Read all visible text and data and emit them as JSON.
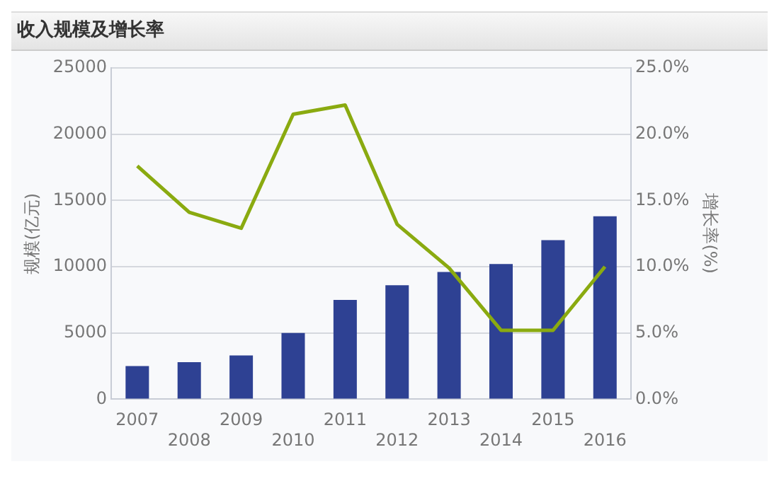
{
  "chart_data": {
    "type": "bar",
    "title": "收入规模及增长率",
    "ylabel": "规模(亿元)",
    "y2label": "增长率(%)",
    "categories": [
      "2007",
      "2008",
      "2009",
      "2010",
      "2011",
      "2012",
      "2013",
      "2014",
      "2015",
      "2016"
    ],
    "series": [
      {
        "color": "#2e4193",
        "values": [
          2500,
          2800,
          3300,
          5000,
          7500,
          8600,
          9600,
          10200,
          12000,
          13800
        ]
      },
      {
        "type": "line",
        "axis": "y2",
        "color": "#8aaa10",
        "marker": "none",
        "values": [
          17.6,
          14.1,
          12.9,
          21.5,
          22.2,
          13.2,
          9.9,
          5.2,
          5.2,
          10.0
        ]
      }
    ],
    "ylim": [
      0,
      25000
    ],
    "yticks": [
      0,
      5000,
      10000,
      15000,
      20000,
      25000
    ],
    "y2lim": [
      0,
      25
    ],
    "y2ticks": [
      {
        "value": 0,
        "label": "0.0%"
      },
      {
        "value": 5,
        "label": "5.0%"
      },
      {
        "value": 10,
        "label": "10.0%"
      },
      {
        "value": 15,
        "label": "15.0%"
      },
      {
        "value": 20,
        "label": "20.0%"
      },
      {
        "value": 25,
        "label": "25.0%"
      }
    ],
    "grid": "y"
  }
}
